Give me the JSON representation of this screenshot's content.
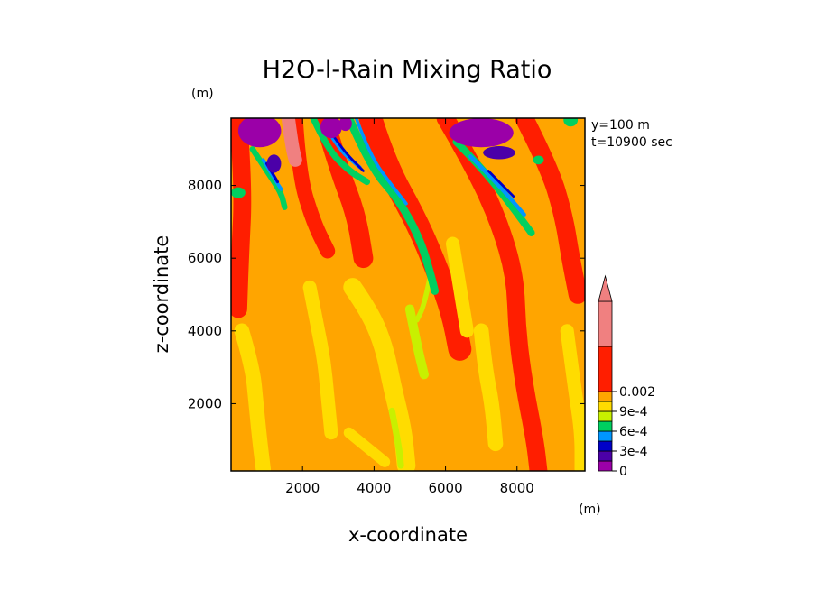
{
  "chart_data": {
    "type": "heatmap",
    "title": "H2O-l-Rain Mixing Ratio",
    "xlabel": "x-coordinate",
    "ylabel": "z-coordinate",
    "x_unit": "(m)",
    "y_unit": "(m)",
    "annotations": [
      "y=100 m",
      "t=10900 sec"
    ],
    "xlim": [
      0,
      9900
    ],
    "ylim": [
      150,
      9850
    ],
    "x_ticks": [
      2000,
      4000,
      6000,
      8000
    ],
    "y_ticks": [
      2000,
      4000,
      6000,
      8000
    ],
    "x_tick_labels": [
      "2000",
      "4000",
      "6000",
      "8000"
    ],
    "y_tick_labels": [
      "2000",
      "4000",
      "6000",
      "8000"
    ],
    "colorbar": {
      "levels": [
        0,
        0.00015,
        0.0003,
        0.00045,
        0.0006,
        0.00075,
        0.0009,
        0.00105,
        0.002
      ],
      "colors": [
        "#9b00a8",
        "#4b00a8",
        "#0000c8",
        "#0096ff",
        "#00d060",
        "#c8f000",
        "#ffdc00",
        "#ffa500",
        "#ff1e00",
        "#f08080"
      ],
      "labels": [
        {
          "value": 0,
          "text": "0"
        },
        {
          "value": 0.0003,
          "text": "3e-4"
        },
        {
          "value": 0.0006,
          "text": "6e-4"
        },
        {
          "value": 0.0009,
          "text": "9e-4"
        },
        {
          "value": 0.002,
          "text": "0.002"
        }
      ],
      "extend": "max"
    },
    "field": {
      "background_class": 7,
      "bands": [
        {
          "class": 8,
          "width": 500,
          "path": [
            [
              200,
              9850
            ],
            [
              350,
              8000
            ],
            [
              250,
              6000
            ],
            [
              200,
              4600
            ]
          ]
        },
        {
          "class": 8,
          "width": 420,
          "path": [
            [
              1800,
              9850
            ],
            [
              1900,
              8300
            ],
            [
              2300,
              7000
            ],
            [
              2700,
              6200
            ]
          ]
        },
        {
          "class": 8,
          "width": 550,
          "path": [
            [
              2600,
              9850
            ],
            [
              3000,
              8500
            ],
            [
              3500,
              7200
            ],
            [
              3700,
              6000
            ]
          ]
        },
        {
          "class": 8,
          "width": 650,
          "path": [
            [
              3900,
              9850
            ],
            [
              4300,
              8600
            ],
            [
              5200,
              7000
            ],
            [
              5800,
              5600
            ],
            [
              6200,
              4500
            ],
            [
              6400,
              3500
            ]
          ]
        },
        {
          "class": 8,
          "width": 500,
          "path": [
            [
              6000,
              9850
            ],
            [
              6800,
              8500
            ],
            [
              7500,
              7000
            ],
            [
              7950,
              5500
            ],
            [
              8000,
              4000
            ],
            [
              8200,
              2500
            ],
            [
              8500,
              1000
            ],
            [
              8600,
              150
            ]
          ]
        },
        {
          "class": 8,
          "width": 520,
          "path": [
            [
              8200,
              9850
            ],
            [
              8900,
              8500
            ],
            [
              9300,
              7200
            ],
            [
              9500,
              6000
            ],
            [
              9700,
              5000
            ]
          ]
        },
        {
          "class": 9,
          "width": 380,
          "path": [
            [
              1600,
              9850
            ],
            [
              1700,
              9100
            ],
            [
              1800,
              8700
            ]
          ]
        },
        {
          "class": 6,
          "width": 420,
          "path": [
            [
              300,
              4000
            ],
            [
              600,
              3000
            ],
            [
              700,
              2000
            ],
            [
              800,
              1000
            ],
            [
              900,
              200
            ]
          ]
        },
        {
          "class": 6,
          "width": 380,
          "path": [
            [
              2200,
              5200
            ],
            [
              2400,
              4200
            ],
            [
              2600,
              3200
            ],
            [
              2700,
              2200
            ],
            [
              2800,
              1200
            ]
          ]
        },
        {
          "class": 6,
          "width": 520,
          "path": [
            [
              3400,
              5200
            ],
            [
              3900,
              4500
            ],
            [
              4300,
              3500
            ],
            [
              4500,
              2500
            ],
            [
              4800,
              1300
            ],
            [
              4900,
              300
            ]
          ]
        },
        {
          "class": 6,
          "width": 380,
          "path": [
            [
              6200,
              6400
            ],
            [
              6400,
              5200
            ],
            [
              6600,
              4000
            ]
          ]
        },
        {
          "class": 6,
          "width": 420,
          "path": [
            [
              7000,
              4000
            ],
            [
              7100,
              3000
            ],
            [
              7300,
              2000
            ],
            [
              7400,
              900
            ]
          ]
        },
        {
          "class": 6,
          "width": 300,
          "path": [
            [
              3300,
              1200
            ],
            [
              3800,
              800
            ],
            [
              4300,
              400
            ]
          ]
        },
        {
          "class": 5,
          "width": 260,
          "path": [
            [
              5000,
              4600
            ],
            [
              5200,
              3600
            ],
            [
              5400,
              2800
            ]
          ]
        },
        {
          "class": 5,
          "width": 180,
          "path": [
            [
              4500,
              1800
            ],
            [
              4700,
              800
            ],
            [
              4750,
              300
            ]
          ]
        },
        {
          "class": 6,
          "width": 380,
          "path": [
            [
              9400,
              4000
            ],
            [
              9600,
              2500
            ],
            [
              9800,
              1200
            ],
            [
              9800,
              200
            ]
          ]
        },
        {
          "class": 4,
          "width": 220,
          "path": [
            [
              3300,
              9850
            ],
            [
              3900,
              8500
            ],
            [
              4700,
              7600
            ],
            [
              5300,
              6500
            ],
            [
              5600,
              5500
            ],
            [
              5700,
              5100
            ]
          ]
        },
        {
          "class": 5,
          "width": 140,
          "path": [
            [
              5550,
              5400
            ],
            [
              5400,
              4700
            ],
            [
              5200,
              4300
            ]
          ]
        },
        {
          "class": 4,
          "width": 160,
          "path": [
            [
              600,
              9000
            ],
            [
              1000,
              8400
            ],
            [
              1400,
              7800
            ],
            [
              1500,
              7400
            ]
          ]
        },
        {
          "class": 4,
          "width": 180,
          "path": [
            [
              2300,
              9850
            ],
            [
              2700,
              9000
            ],
            [
              3300,
              8400
            ],
            [
              3800,
              8100
            ]
          ]
        },
        {
          "class": 4,
          "width": 200,
          "path": [
            [
              6300,
              9200
            ],
            [
              7000,
              8500
            ],
            [
              7800,
              7500
            ],
            [
              8400,
              6700
            ]
          ]
        },
        {
          "class": 3,
          "width": 90,
          "path": [
            [
              3500,
              9850
            ],
            [
              3900,
              8800
            ],
            [
              4500,
              8000
            ],
            [
              4900,
              7500
            ]
          ]
        },
        {
          "class": 3,
          "width": 100,
          "path": [
            [
              900,
              8700
            ],
            [
              1200,
              8200
            ],
            [
              1400,
              7900
            ]
          ]
        },
        {
          "class": 3,
          "width": 100,
          "path": [
            [
              2600,
              9700
            ],
            [
              3000,
              9000
            ],
            [
              3600,
              8500
            ]
          ]
        },
        {
          "class": 3,
          "width": 110,
          "path": [
            [
              6700,
              8800
            ],
            [
              7500,
              8000
            ],
            [
              8200,
              7200
            ]
          ]
        },
        {
          "class": 2,
          "width": 70,
          "path": [
            [
              2700,
              9600
            ],
            [
              3100,
              9000
            ],
            [
              3700,
              8400
            ]
          ]
        },
        {
          "class": 2,
          "width": 80,
          "path": [
            [
              1000,
              8600
            ],
            [
              1300,
              8100
            ]
          ]
        },
        {
          "class": 2,
          "width": 70,
          "path": [
            [
              7200,
              8400
            ],
            [
              7900,
              7700
            ]
          ]
        }
      ],
      "blobs": [
        {
          "class": 0,
          "cx": 800,
          "cy": 9500,
          "rx": 600,
          "ry": 450
        },
        {
          "class": 1,
          "cx": 1200,
          "cy": 8600,
          "rx": 200,
          "ry": 250
        },
        {
          "class": 0,
          "cx": 2800,
          "cy": 9600,
          "rx": 300,
          "ry": 300
        },
        {
          "class": 0,
          "cx": 3200,
          "cy": 9700,
          "rx": 180,
          "ry": 200
        },
        {
          "class": 0,
          "cx": 7000,
          "cy": 9450,
          "rx": 900,
          "ry": 400
        },
        {
          "class": 1,
          "cx": 7500,
          "cy": 8900,
          "rx": 450,
          "ry": 180
        },
        {
          "class": 4,
          "cx": 9500,
          "cy": 9800,
          "rx": 200,
          "ry": 180
        },
        {
          "class": 4,
          "cx": 200,
          "cy": 7800,
          "rx": 200,
          "ry": 150
        },
        {
          "class": 4,
          "cx": 8600,
          "cy": 8700,
          "rx": 150,
          "ry": 120
        }
      ]
    }
  }
}
